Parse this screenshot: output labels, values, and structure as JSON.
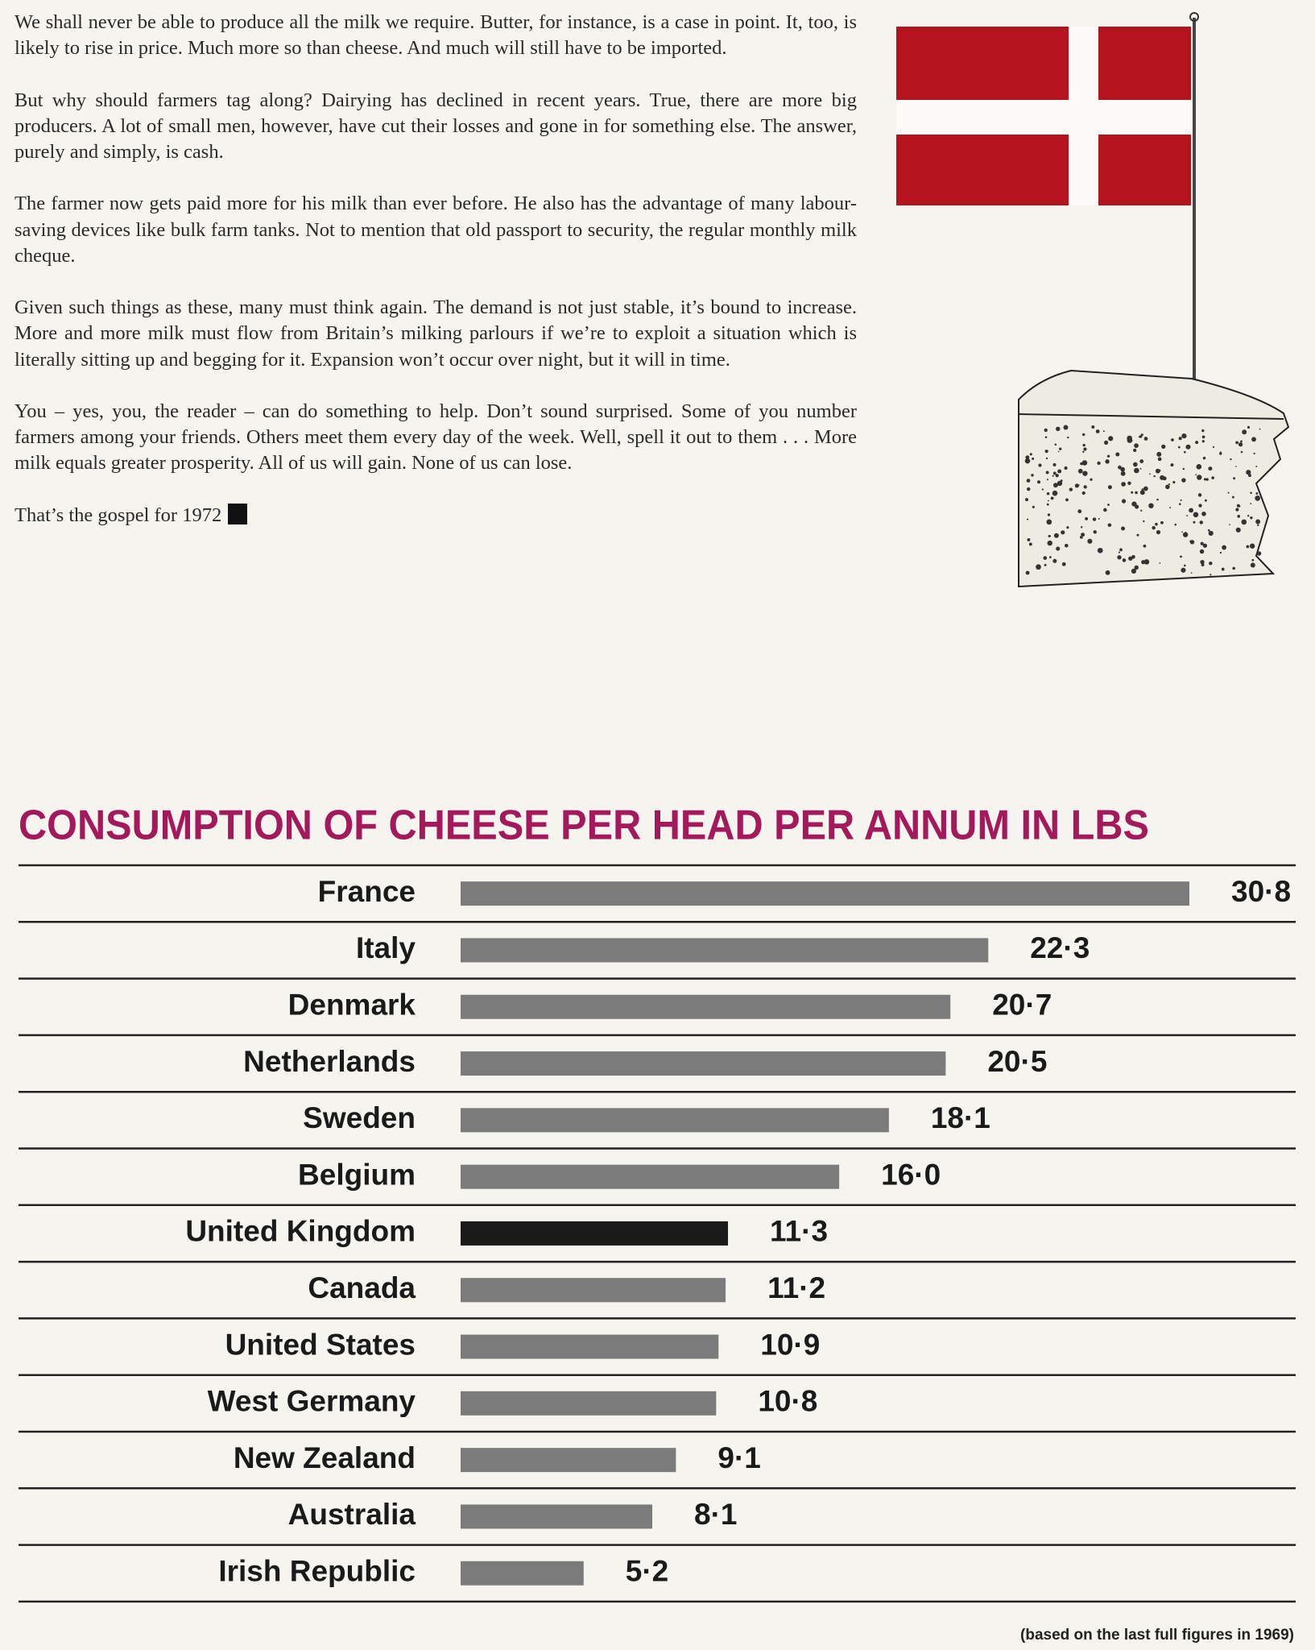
{
  "paragraphs": [
    "We shall never be able to produce all the milk we require. Butter, for instance, is a case in point. It, too, is likely to rise in price. Much more so than cheese. And much will still have to be imported.",
    "But why should farmers tag along? Dairying has declined in recent years. True, there are more big producers. A lot of small men, however, have cut their losses and gone in for something else. The answer, purely and simply, is cash.",
    "The farmer now gets paid more for his milk than ever before. He also has the advantage of many labour-saving devices like bulk farm tanks. Not to mention that old passport to security, the regular monthly milk cheque.",
    "Given such things as these, many must think again. The demand is not just stable, it’s bound to increase. More and more milk must flow from Britain’s milking parlours if we’re to exploit a situation which is literally sitting up and begging for it. Expansion won’t occur over night, but it will in time.",
    "You – yes, you, the reader – can do something to help. Don’t sound surprised. Some of you number farmers among your friends. Others meet them every day of the week. Well, spell it out to them . . . More milk equals greater prosperity. All of us will gain. None of us can lose.",
    "That’s the gospel for 1972"
  ],
  "chart_data": {
    "type": "barh",
    "title": "CONSUMPTION OF CHEESE PER HEAD PER ANNUM IN LBS",
    "categories": [
      "France",
      "Italy",
      "Denmark",
      "Netherlands",
      "Sweden",
      "Belgium",
      "United Kingdom",
      "Canada",
      "United States",
      "West Germany",
      "New Zealand",
      "Australia",
      "Irish Republic"
    ],
    "values": [
      30.8,
      22.3,
      20.7,
      20.5,
      18.1,
      16.0,
      11.3,
      11.2,
      10.9,
      10.8,
      9.1,
      8.1,
      5.2
    ],
    "value_labels": [
      "30·8",
      "22·3",
      "20·7",
      "20·5",
      "18·1",
      "16·0",
      "11·3",
      "11·2",
      "10·9",
      "10·8",
      "9·1",
      "8·1",
      "5·2"
    ],
    "colors": [
      "#7b7b7b",
      "#7b7b7b",
      "#7b7b7b",
      "#7b7b7b",
      "#7b7b7b",
      "#7b7b7b",
      "#1a1a1a",
      "#7b7b7b",
      "#7b7b7b",
      "#7b7b7b",
      "#7b7b7b",
      "#7b7b7b",
      "#7b7b7b"
    ],
    "note": "(based on the last full figures in 1969)"
  }
}
